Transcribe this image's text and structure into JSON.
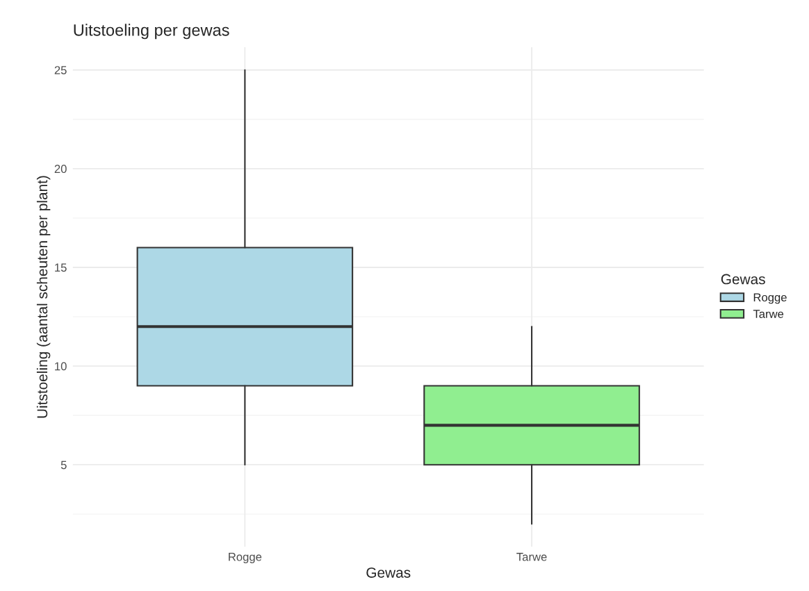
{
  "chart_data": {
    "type": "box",
    "title": "Uitstoeling per gewas",
    "xlabel": "Gewas",
    "ylabel": "Uitstoeling (aantal scheuten per plant)",
    "categories": [
      "Rogge",
      "Tarwe"
    ],
    "series": [
      {
        "name": "Rogge",
        "color": "#add8e6",
        "boxes": [
          {
            "low": 5,
            "q1": 9,
            "median": 12,
            "q3": 16,
            "high": 25
          },
          null
        ]
      },
      {
        "name": "Tarwe",
        "color": "#90ee90",
        "boxes": [
          null,
          {
            "low": 2,
            "q1": 5,
            "median": 7,
            "q3": 9,
            "high": 12
          }
        ]
      }
    ],
    "ylim": [
      0.85,
      26.15
    ],
    "yticks": [
      5,
      10,
      15,
      20,
      25
    ],
    "grid": true,
    "legend": "right",
    "legend_title": "Gewas"
  }
}
